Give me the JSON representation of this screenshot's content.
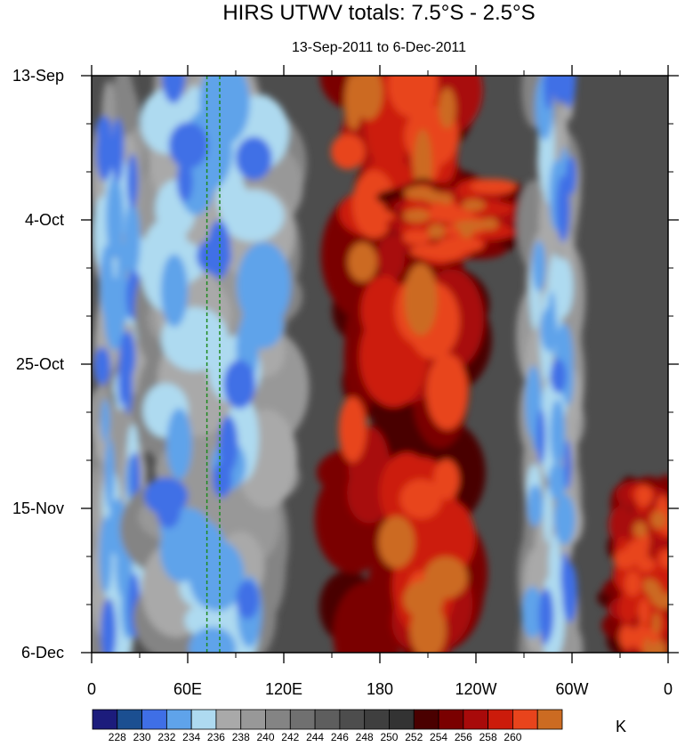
{
  "chart_data": {
    "type": "heatmap",
    "title": "HIRS UTWV totals: 7.5°S - 2.5°S",
    "subtitle": "13-Sep-2011 to 6-Dec-2011",
    "x_ticks": [
      "0",
      "60E",
      "120E",
      "180",
      "120W",
      "60W",
      "0"
    ],
    "x_tick_values": [
      0,
      60,
      120,
      180,
      240,
      300,
      360
    ],
    "x_range": [
      0,
      360
    ],
    "y_ticks": [
      "13-Sep",
      "4-Oct",
      "25-Oct",
      "15-Nov",
      "6-Dec"
    ],
    "y_tick_days": [
      0,
      21,
      42,
      63,
      84
    ],
    "y_range_days": [
      0,
      84
    ],
    "colorbar": {
      "unit": "K",
      "levels": [
        "228",
        "230",
        "232",
        "234",
        "236",
        "238",
        "240",
        "242",
        "244",
        "246",
        "248",
        "250",
        "252",
        "254",
        "256",
        "258",
        "260"
      ],
      "colors": [
        "#1c1c7c",
        "#1b4f91",
        "#3f6fe6",
        "#5fa3ea",
        "#aedaf0",
        "#a9a9a9",
        "#989898",
        "#848484",
        "#707070",
        "#5e5e5e",
        "#4d4d4d",
        "#3f3f3f",
        "#333333",
        "#4a0000",
        "#7a0000",
        "#a80a0a",
        "#cc1b0b",
        "#e8441c",
        "#cc6b22"
      ]
    },
    "reference_lines": {
      "style": "green dashed vertical",
      "longitudes": [
        72,
        80
      ]
    },
    "field_features": [
      {
        "kind": "moist-cold",
        "lon_range": [
          5,
          30
        ],
        "days": [
          5,
          84
        ]
      },
      {
        "kind": "moist-cold",
        "lon_range": [
          45,
          110
        ],
        "days": [
          0,
          84
        ]
      },
      {
        "kind": "moist-cold",
        "lon_range": [
          275,
          300
        ],
        "days": [
          0,
          84
        ]
      },
      {
        "kind": "dry-warm",
        "lon_range": [
          160,
          225
        ],
        "days": [
          0,
          84
        ]
      },
      {
        "kind": "dry-warm",
        "lon_range": [
          200,
          255
        ],
        "days": [
          16,
          26
        ]
      },
      {
        "kind": "dry-warm",
        "lon_range": [
          330,
          360
        ],
        "days": [
          60,
          84
        ]
      }
    ]
  }
}
